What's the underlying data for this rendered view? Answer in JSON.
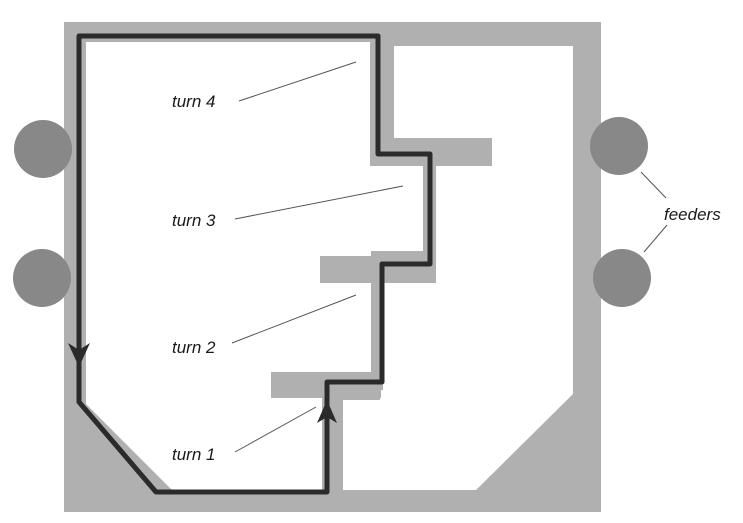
{
  "labels": {
    "turn4": "turn 4",
    "turn3": "turn 3",
    "turn2": "turn 2",
    "turn1": "turn 1",
    "feeders": "feeders"
  },
  "colors": {
    "maze_wall": "#b0b0b0",
    "floor": "#ffffff",
    "path": "#2b2b2b",
    "feeder": "#888888",
    "text": "#1a1a1a",
    "leader_line": "#555555"
  },
  "feeders": {
    "left_count": 2,
    "right_count": 2
  },
  "route": {
    "turns": 4,
    "has_start_arrow": true,
    "has_direction_arrow": true
  }
}
